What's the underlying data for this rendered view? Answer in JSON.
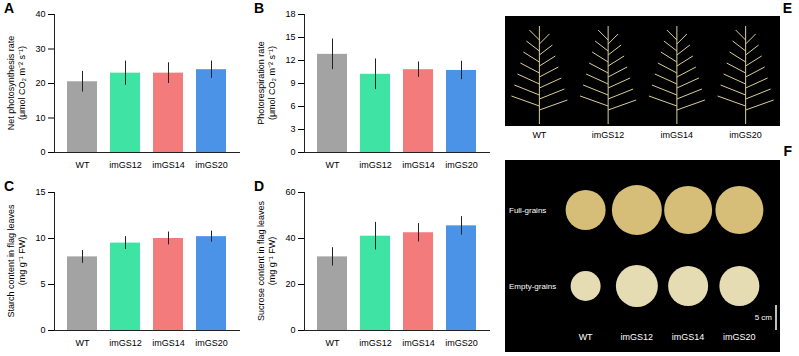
{
  "chart_data": [
    {
      "type": "bar",
      "title": "A",
      "ylabel": "Net photosynthesis rate (μmol CO₂ m⁻² s⁻¹)",
      "categories": [
        "WT",
        "imGS12",
        "imGS14",
        "imGS20"
      ],
      "values": [
        20.5,
        23,
        23,
        24
      ],
      "errors": [
        3,
        3.5,
        3,
        2.5
      ],
      "colors": [
        "#a3a3a3",
        "#3fe3a3",
        "#f47b7b",
        "#4a93e6"
      ],
      "ylim": [
        0,
        40
      ],
      "yticks": [
        0,
        10,
        20,
        30,
        40
      ]
    },
    {
      "type": "bar",
      "title": "B",
      "ylabel": "Photorespiration rate (μmol CO₂ m⁻² s⁻¹)",
      "categories": [
        "WT",
        "imGS12",
        "imGS14",
        "imGS20"
      ],
      "values": [
        12.8,
        10.2,
        10.8,
        10.7
      ],
      "errors": [
        2,
        2,
        1,
        1.2
      ],
      "colors": [
        "#a3a3a3",
        "#3fe3a3",
        "#f47b7b",
        "#4a93e6"
      ],
      "ylim": [
        0,
        18
      ],
      "yticks": [
        0,
        3,
        6,
        9,
        12,
        15,
        18
      ]
    },
    {
      "type": "bar",
      "title": "C",
      "ylabel": "Starch content in flag leaves (mg g⁻¹ FW)",
      "categories": [
        "WT",
        "imGS12",
        "imGS14",
        "imGS20"
      ],
      "values": [
        8,
        9.5,
        10,
        10.2
      ],
      "errors": [
        0.7,
        0.7,
        0.7,
        0.6
      ],
      "colors": [
        "#a3a3a3",
        "#3fe3a3",
        "#f47b7b",
        "#4a93e6"
      ],
      "ylim": [
        0,
        15
      ],
      "yticks": [
        0,
        5,
        10,
        15
      ]
    },
    {
      "type": "bar",
      "title": "D",
      "ylabel": "Sucrose content in flag leaves (mg g⁻¹ FW)",
      "categories": [
        "WT",
        "imGS12",
        "imGS14",
        "imGS20"
      ],
      "values": [
        32,
        41,
        42.5,
        45.5
      ],
      "errors": [
        4,
        6,
        4,
        4
      ],
      "colors": [
        "#a3a3a3",
        "#3fe3a3",
        "#f47b7b",
        "#4a93e6"
      ],
      "ylim": [
        0,
        60
      ],
      "yticks": [
        0,
        20,
        40,
        60
      ]
    }
  ],
  "photos": [
    {
      "title": "E",
      "labels": [
        "WT",
        "imGS12",
        "imGS14",
        "imGS20"
      ]
    },
    {
      "title": "F",
      "labels": [
        "WT",
        "imGS12",
        "imGS14",
        "imGS20"
      ],
      "rows": [
        "Full-grains",
        "Empty-grains"
      ],
      "scale_bar": "5 cm"
    }
  ]
}
